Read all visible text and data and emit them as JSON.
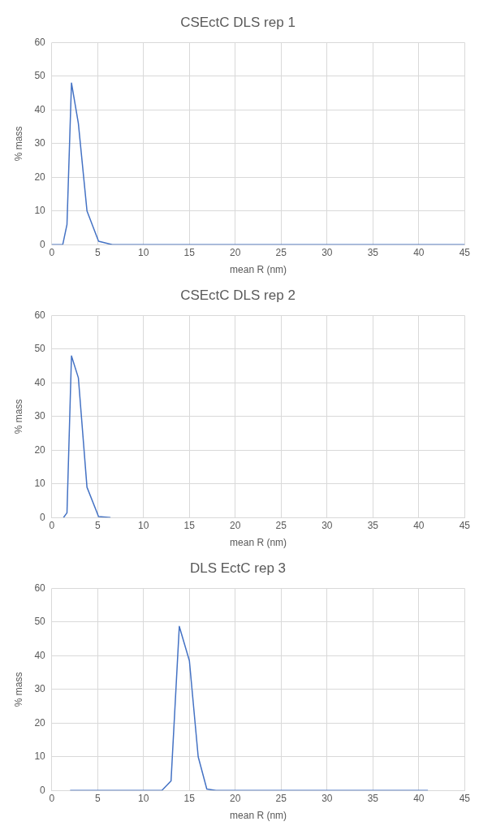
{
  "chart_data": [
    {
      "type": "line",
      "title": "CSEctC DLS rep 1",
      "xlabel": "mean R (nm)",
      "ylabel": "% mass",
      "xlim": [
        0,
        45
      ],
      "xticks": [
        0,
        5,
        10,
        15,
        20,
        25,
        30,
        35,
        40,
        45
      ],
      "ylim": [
        0,
        60
      ],
      "yticks": [
        0,
        10,
        20,
        30,
        40,
        50,
        60
      ],
      "grid": true,
      "series": [
        {
          "color": "#4472c4",
          "x": [
            0,
            1.2,
            1.66,
            2.15,
            2.9,
            3.84,
            5.1,
            6.6,
            45
          ],
          "values": [
            0,
            0,
            6,
            48,
            36,
            10,
            1,
            0,
            0
          ]
        }
      ]
    },
    {
      "type": "line",
      "title": "CSEctC DLS rep 2",
      "xlabel": "mean R (nm)",
      "ylabel": "% mass",
      "xlim": [
        0,
        45
      ],
      "xticks": [
        0,
        5,
        10,
        15,
        20,
        25,
        30,
        35,
        40,
        45
      ],
      "ylim": [
        0,
        60
      ],
      "yticks": [
        0,
        10,
        20,
        30,
        40,
        50,
        60
      ],
      "grid": true,
      "series": [
        {
          "color": "#4472c4",
          "x": [
            1.28,
            1.66,
            2.15,
            2.9,
            3.84,
            5.1,
            6.4
          ],
          "values": [
            0,
            1.4,
            48,
            41.5,
            9,
            0.3,
            0
          ]
        }
      ]
    },
    {
      "type": "line",
      "title": "DLS EctC rep 3",
      "xlabel": "mean R (nm)",
      "ylabel": "% mass",
      "xlim": [
        0,
        45
      ],
      "xticks": [
        0,
        5,
        10,
        15,
        20,
        25,
        30,
        35,
        40,
        45
      ],
      "ylim": [
        0,
        60
      ],
      "yticks": [
        0,
        10,
        20,
        30,
        40,
        50,
        60
      ],
      "grid": true,
      "series": [
        {
          "color": "#4472c4",
          "x": [
            2,
            12,
            13,
            13.9,
            15,
            15.96,
            16.9,
            17.9,
            41
          ],
          "values": [
            0,
            0,
            2.8,
            48.7,
            38.5,
            10,
            0.4,
            0,
            0
          ]
        }
      ]
    }
  ]
}
